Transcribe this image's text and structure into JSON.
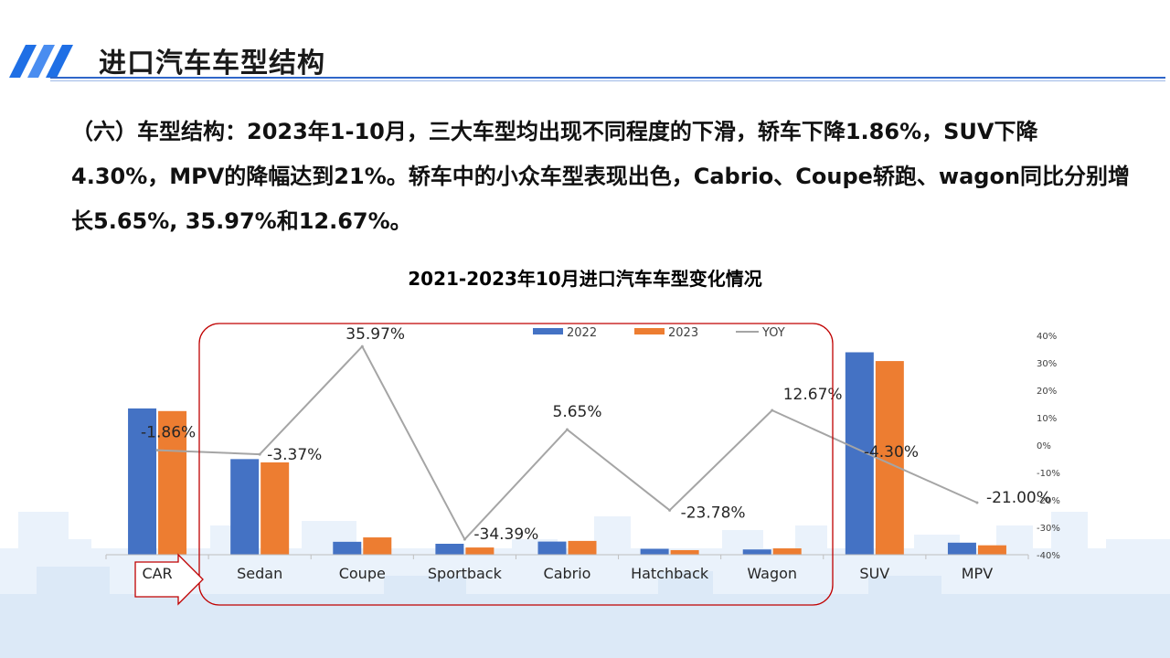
{
  "slide": {
    "title": "进口汽车车型结构",
    "body": "（六）车型结构：2023年1-10月，三大车型均出现不同程度的下滑，轿车下降1.86%，SUV下降4.30%，MPV的降幅达到21%。轿车中的小众车型表现出色，Cabrio、Coupe轿跑、wagon同比分别增长5.65%, 35.97%和12.67%。"
  },
  "colors": {
    "accent_blue": "#1f6fe5",
    "series_2022": "#4472c4",
    "series_2023": "#ed7d31",
    "series_yoy": "#a5a5a5",
    "highlight_box": "#c00000"
  },
  "chart_data": {
    "type": "bar",
    "title": "2021-2023年10月进口汽车车型变化情况",
    "categories": [
      "CAR",
      "Sedan",
      "Coupe",
      "Sportback",
      "Cabrio",
      "Hatchback",
      "Wagon",
      "SUV",
      "MPV"
    ],
    "series": [
      {
        "name": "2022",
        "type": "bar",
        "axis": "left",
        "values": [
          66.7,
          43.6,
          5.9,
          5.0,
          6.0,
          2.7,
          2.4,
          92.3,
          5.5
        ]
      },
      {
        "name": "2023",
        "type": "bar",
        "axis": "left",
        "values": [
          65.5,
          42.1,
          7.9,
          3.3,
          6.3,
          2.1,
          2.9,
          88.3,
          4.3
        ]
      },
      {
        "name": "YOY",
        "type": "line",
        "axis": "right",
        "unit": "%",
        "values": [
          -1.86,
          -3.37,
          35.97,
          -34.39,
          5.65,
          -23.78,
          12.67,
          -4.3,
          -21.0
        ]
      }
    ],
    "data_labels": [
      "-1.86%",
      "-3.37%",
      "35.97%",
      "-34.39%",
      "5.65%",
      "-23.78%",
      "12.67%",
      "-4.30%",
      "-21.00%"
    ],
    "left_axis": {
      "visible": false,
      "ylim": [
        0,
        100
      ]
    },
    "right_axis": {
      "ylim": [
        -40,
        40
      ],
      "ticks": [
        "40%",
        "30%",
        "20%",
        "10%",
        "0%",
        "-10%",
        "-20%",
        "-30%",
        "-40%"
      ]
    },
    "legend": {
      "position": "top",
      "entries": [
        "2022",
        "2023",
        "YOY"
      ]
    },
    "grid": false,
    "annotations": [
      "highlight box around Sedan through Wagon",
      "arrow from CAR"
    ]
  }
}
